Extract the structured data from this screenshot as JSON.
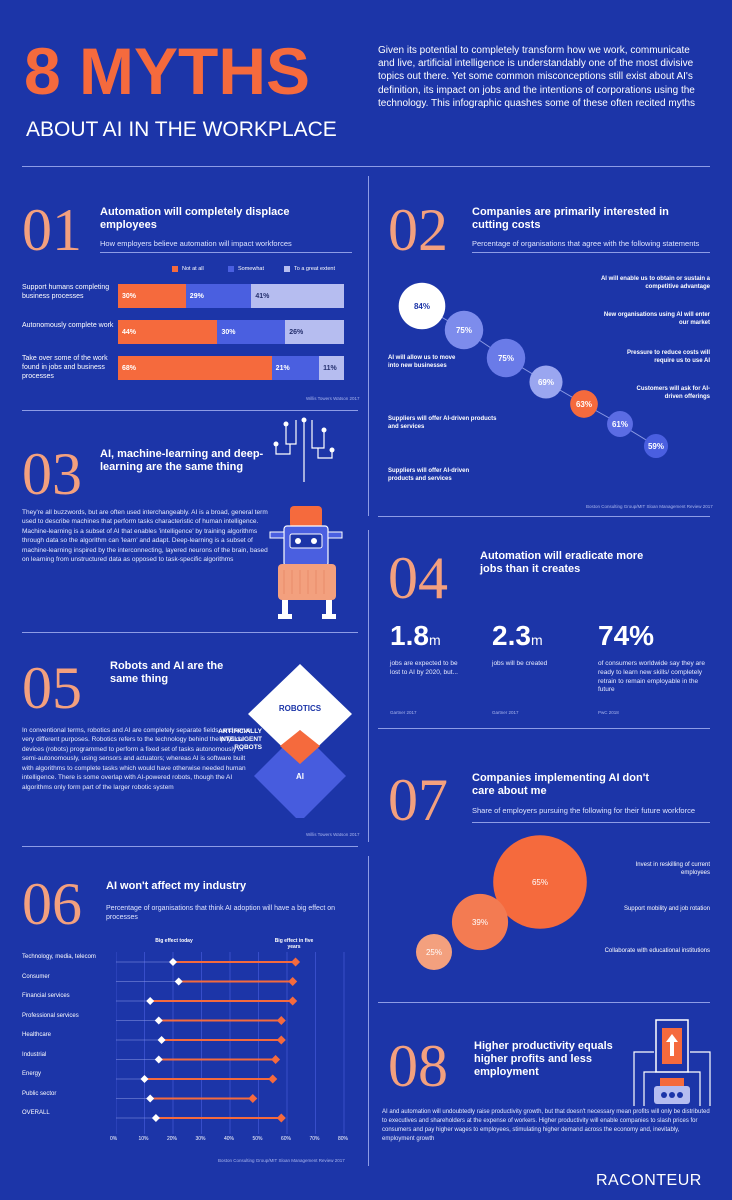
{
  "header": {
    "title_big": "8 MYTHS",
    "title_small": "ABOUT AI IN THE WORKPLACE",
    "intro": "Given its potential to completely transform how we work, communicate and live, artificial intelligence is understandably one of the most divisive topics out there. Yet some common misconceptions still exist about AI's definition, its impact on jobs and the intentions of corporations using the technology. This infographic quashes some of these often recited myths"
  },
  "m01": {
    "num": "01",
    "title": "Automation will completely displace employees",
    "subtitle": "How employers believe automation will impact workforces",
    "legend": [
      "Not at all",
      "Somewhat",
      "To a great extent"
    ],
    "source": "Willis Towers Watson 2017",
    "chart_data": {
      "type": "bar",
      "stacked": true,
      "categories": [
        "Support humans completing business processes",
        "Autonomously complete work",
        "Take over some of the work found in jobs and business processes"
      ],
      "series": [
        {
          "name": "Not at all",
          "values": [
            30,
            44,
            68
          ],
          "labels": [
            "30%",
            "44%",
            "68%"
          ]
        },
        {
          "name": "Somewhat",
          "values": [
            29,
            30,
            21
          ],
          "labels": [
            "29%",
            "30%",
            "21%"
          ]
        },
        {
          "name": "To a great extent",
          "values": [
            41,
            26,
            11
          ],
          "labels": [
            "41%",
            "26%",
            "11%"
          ]
        }
      ],
      "colors": [
        "#f56a3d",
        "#4a5fe0",
        "#b6bdf0"
      ]
    }
  },
  "m02": {
    "num": "02",
    "title": "Companies are primarily interested in cutting costs",
    "subtitle": "Percentage of organisations that agree with the following statements",
    "source": "Boston Consulting Group/MIT Sloan Management Review 2017",
    "chart_data": {
      "type": "bubble",
      "categories": [
        "AI will enable us to obtain or sustain a competitive advantage",
        "AI will allow us to move into new businesses",
        "New organisations using AI will enter our market",
        "Pressure to reduce costs will require us to use AI",
        "Suppliers will offer AI-driven products and services",
        "Customers will ask for AI-driven offerings",
        "Suppliers will offer AI-driven products and services"
      ],
      "values": [
        84,
        75,
        75,
        69,
        63,
        61,
        59
      ],
      "labels": [
        "84%",
        "75%",
        "75%",
        "69%",
        "63%",
        "61%",
        "59%"
      ]
    }
  },
  "m03": {
    "num": "03",
    "title": "AI, machine-learning and deep-learning are the same thing",
    "body": "They're all buzzwords, but are often used interchangeably. AI is a broad, general term used to describe machines that perform tasks characteristic of human intelligence. Machine-learning is a subset of AI that enables 'intelligence' by training algorithms through data so the algorithm can 'learn' and adapt. Deep-learning is a subset of machine-learning inspired by the interconnecting, layered neurons of the brain, based on learning from unstructured data as opposed to task-specific algorithms"
  },
  "m04": {
    "num": "04",
    "title": "Automation will eradicate more jobs than it creates",
    "stats": [
      {
        "value": "1.8",
        "unit": "m",
        "caption": "jobs are expected to be lost to AI by 2020, but...",
        "source": "Gartner 2017"
      },
      {
        "value": "2.3",
        "unit": "m",
        "caption": "jobs will be created",
        "source": "Gartner 2017"
      },
      {
        "value": "74",
        "unit": "%",
        "caption": "of consumers worldwide say they are ready to learn new skills/ completely retrain to remain employable in the future",
        "source": "PwC 2018"
      }
    ]
  },
  "m05": {
    "num": "05",
    "title": "Robots and AI are the same thing",
    "body": "In conventional terms, robotics and AI are completely separate fields, and serve very different purposes. Robotics refers to the technology behind the physical devices (robots) programmed to perform a fixed set of tasks autonomously or semi-autonomously, using sensors and actuators; whereas AI is software built with algorithms to complete tasks which would have otherwise needed human intelligence. There is some overlap with AI-powered robots, though the AI algorithms only form part of the larger robotic system",
    "robotics": "ROBOTICS",
    "ai": "AI",
    "overlap": "ARTIFICIALLY INTELLIGENT ROBOTS",
    "source": "Willis Towers Watson 2017"
  },
  "m06": {
    "num": "06",
    "title": "AI won't affect my industry",
    "subtitle": "Percentage of organisations that think AI adoption will have a big effect on processes",
    "legend_today": "Big effect today",
    "legend_five": "Big effect in five years",
    "source": "Boston Consulting Group/MIT Sloan Management Review 2017",
    "chart_data": {
      "type": "dumbbell",
      "categories": [
        "Technology, media, telecom",
        "Consumer",
        "Financial services",
        "Professional services",
        "Healthcare",
        "Industrial",
        "Energy",
        "Public sector",
        "OVERALL"
      ],
      "series": [
        {
          "name": "Big effect today",
          "values": [
            20,
            22,
            12,
            15,
            16,
            15,
            10,
            12,
            14
          ]
        },
        {
          "name": "Big effect in five years",
          "values": [
            63,
            62,
            62,
            58,
            58,
            56,
            55,
            48,
            58
          ]
        }
      ],
      "xticks": [
        "0%",
        "10%",
        "20%",
        "30%",
        "40%",
        "50%",
        "60%",
        "70%",
        "80%"
      ],
      "xlim": [
        0,
        80
      ]
    }
  },
  "m07": {
    "num": "07",
    "title": "Companies implementing AI don't care about me",
    "subtitle": "Share of employers pursuing the following for their future workforce",
    "chart_data": {
      "type": "bubble",
      "categories": [
        "Invest in reskilling of current employees",
        "Support mobility and job rotation",
        "Collaborate with educational institutions"
      ],
      "values": [
        65,
        39,
        25
      ],
      "labels": [
        "65%",
        "39%",
        "25%"
      ]
    }
  },
  "m08": {
    "num": "08",
    "title": "Higher productivity equals higher profits and less employment",
    "body": "AI and automation will undoubtedly raise productivity growth, but that doesn't necessary mean profits will only be distributed to executives and shareholders at the expense of workers. Higher productivity will enable companies to slash prices for consumers and pay higher wages to employees, stimulating higher demand across the economy and, inevitably, employment growth"
  },
  "footer": {
    "brand": "RACONTEUR"
  },
  "colors": {
    "background": "#1c35a8",
    "accent": "#f56a3d",
    "peach": "#f3a07e",
    "mid": "#4a5fe0",
    "light": "#b6bdf0"
  }
}
